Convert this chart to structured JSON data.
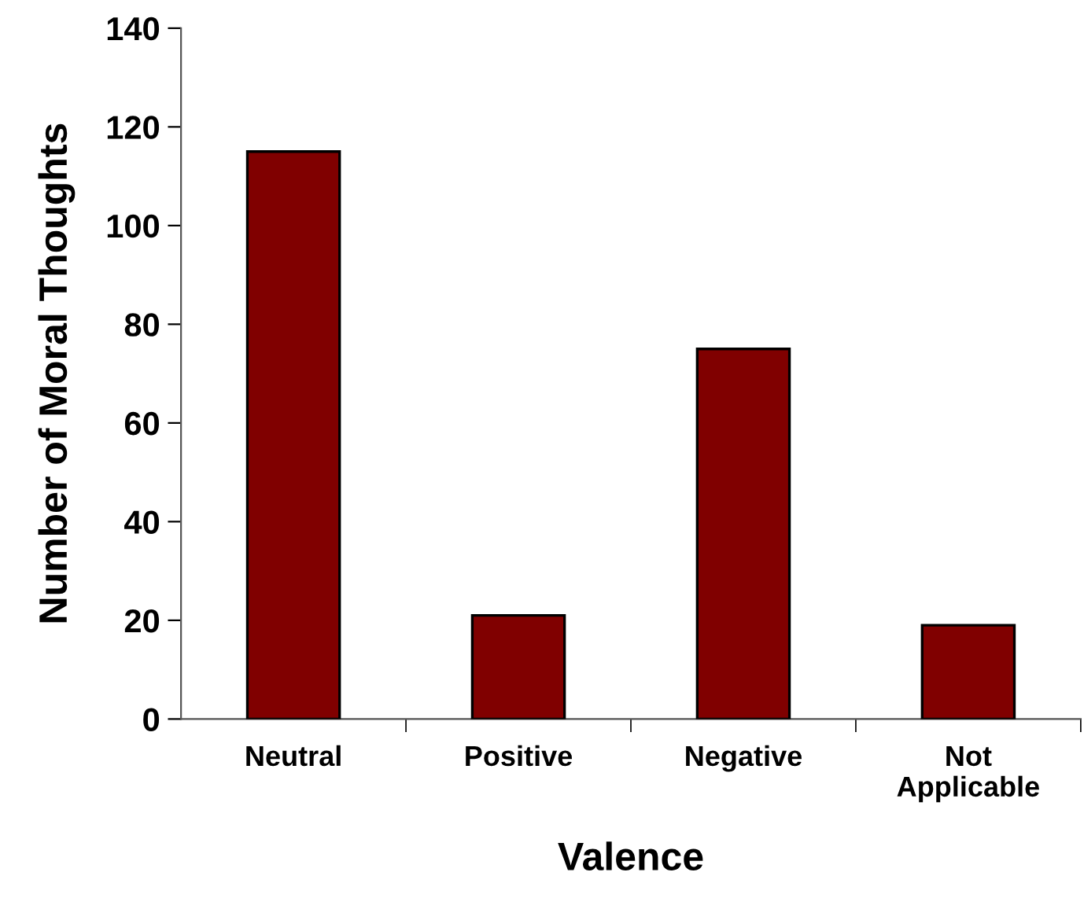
{
  "chart_data": {
    "type": "bar",
    "xlabel": "Valence",
    "ylabel": "Number of Moral Thoughts",
    "categories": [
      "Neutral",
      "Positive",
      "Negative",
      "Not\nApplicable"
    ],
    "values": [
      115,
      21,
      75,
      19
    ],
    "color": "#800000",
    "ylim": [
      0,
      140
    ],
    "yticks": [
      0,
      20,
      40,
      60,
      80,
      100,
      120,
      140
    ],
    "grid": false,
    "legend": false
  }
}
